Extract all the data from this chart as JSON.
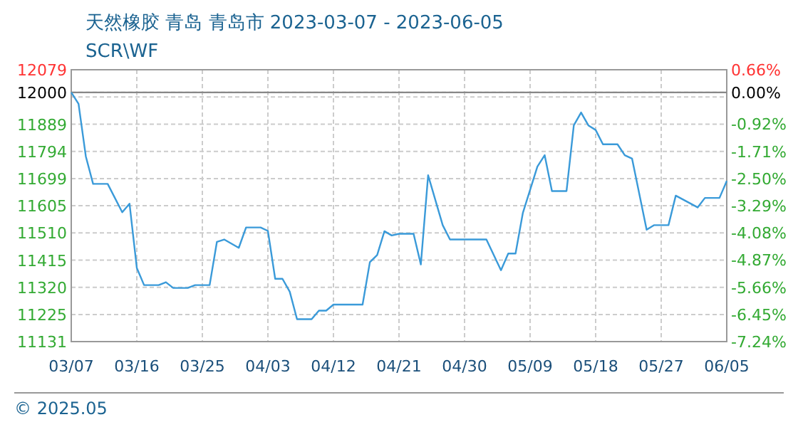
{
  "chart_data": {
    "type": "line",
    "title": "天然橡胶 青岛 青岛市 2023-03-07 - 2023-06-05",
    "subtitle": "SCR\\WF",
    "color": "#3a9ad9",
    "grid": true,
    "x": [
      "2023-03-07",
      "2023-03-08",
      "2023-03-09",
      "2023-03-10",
      "2023-03-12",
      "2023-03-14",
      "2023-03-15",
      "2023-03-16",
      "2023-03-17",
      "2023-03-19",
      "2023-03-20",
      "2023-03-21",
      "2023-03-23",
      "2023-03-24",
      "2023-03-26",
      "2023-03-27",
      "2023-03-28",
      "2023-03-30",
      "2023-03-31",
      "2023-04-02",
      "2023-04-03",
      "2023-04-04",
      "2023-04-05",
      "2023-04-06",
      "2023-04-07",
      "2023-04-09",
      "2023-04-10",
      "2023-04-11",
      "2023-04-12",
      "2023-04-16",
      "2023-04-17",
      "2023-04-18",
      "2023-04-19",
      "2023-04-20",
      "2023-04-21",
      "2023-04-23",
      "2023-04-24",
      "2023-04-25",
      "2023-04-27",
      "2023-04-28",
      "2023-05-03",
      "2023-05-05",
      "2023-05-06",
      "2023-05-07",
      "2023-05-08",
      "2023-05-10",
      "2023-05-11",
      "2023-05-12",
      "2023-05-14",
      "2023-05-15",
      "2023-05-16",
      "2023-05-17",
      "2023-05-18",
      "2023-05-19",
      "2023-05-21",
      "2023-05-22",
      "2023-05-23",
      "2023-05-25",
      "2023-05-26",
      "2023-05-28",
      "2023-05-29",
      "2023-06-01",
      "2023-06-02",
      "2023-06-04",
      "2023-06-05"
    ],
    "values": [
      12000,
      11960,
      11777,
      11681,
      11681,
      11582,
      11612,
      11388,
      11328,
      11328,
      11338,
      11318,
      11318,
      11328,
      11328,
      11479,
      11487,
      11458,
      11529,
      11529,
      11517,
      11350,
      11350,
      11305,
      11209,
      11209,
      11239,
      11239,
      11260,
      11260,
      11408,
      11433,
      11516,
      11501,
      11507,
      11507,
      11400,
      11711,
      11537,
      11487,
      11487,
      11380,
      11438,
      11438,
      11579,
      11741,
      11781,
      11656,
      11656,
      11885,
      11930,
      11885,
      11869,
      11819,
      11819,
      11781,
      11769,
      11521,
      11537,
      11537,
      11640,
      11599,
      11632,
      11632,
      11691
    ],
    "xlim": [
      "2023-03-07",
      "2023-06-05"
    ],
    "xticks": [
      {
        "value": "2023-03-07",
        "label": "03/07"
      },
      {
        "value": "2023-03-16",
        "label": "03/16"
      },
      {
        "value": "2023-03-25",
        "label": "03/25"
      },
      {
        "value": "2023-04-03",
        "label": "04/03"
      },
      {
        "value": "2023-04-12",
        "label": "04/12"
      },
      {
        "value": "2023-04-21",
        "label": "04/21"
      },
      {
        "value": "2023-04-30",
        "label": "04/30"
      },
      {
        "value": "2023-05-09",
        "label": "05/09"
      },
      {
        "value": "2023-05-18",
        "label": "05/18"
      },
      {
        "value": "2023-05-27",
        "label": "05/27"
      },
      {
        "value": "2023-06-05",
        "label": "06/05"
      }
    ],
    "ylim": [
      11131,
      12079
    ],
    "yticks": [
      12079,
      {
        "value": 11984,
        "label": null
      },
      12000,
      11889,
      11794,
      11699,
      11605,
      11510,
      11415,
      11320,
      11225,
      11131
    ],
    "y2lim": [
      -7.24,
      0.66
    ],
    "y2ticks": [
      {
        "value": 0.66,
        "label": "0.66%"
      },
      {
        "value": 0,
        "label": "0.00%"
      },
      {
        "value": -0.92,
        "label": "-0.92%"
      },
      {
        "value": -1.71,
        "label": "-1.71%"
      },
      {
        "value": -2.5,
        "label": "-2.50%"
      },
      {
        "value": -3.29,
        "label": "-3.29%"
      },
      {
        "value": -4.08,
        "label": "-4.08%"
      },
      {
        "value": -4.87,
        "label": "-4.87%"
      },
      {
        "value": -5.66,
        "label": "-5.66%"
      },
      {
        "value": -6.45,
        "label": "-6.45%"
      },
      {
        "value": -7.24,
        "label": "-7.24%"
      }
    ],
    "ref_lines": [
      {
        "axis": "y",
        "value": 12000,
        "color": "#888888"
      }
    ],
    "annotations": [
      "© 2025.05"
    ]
  }
}
